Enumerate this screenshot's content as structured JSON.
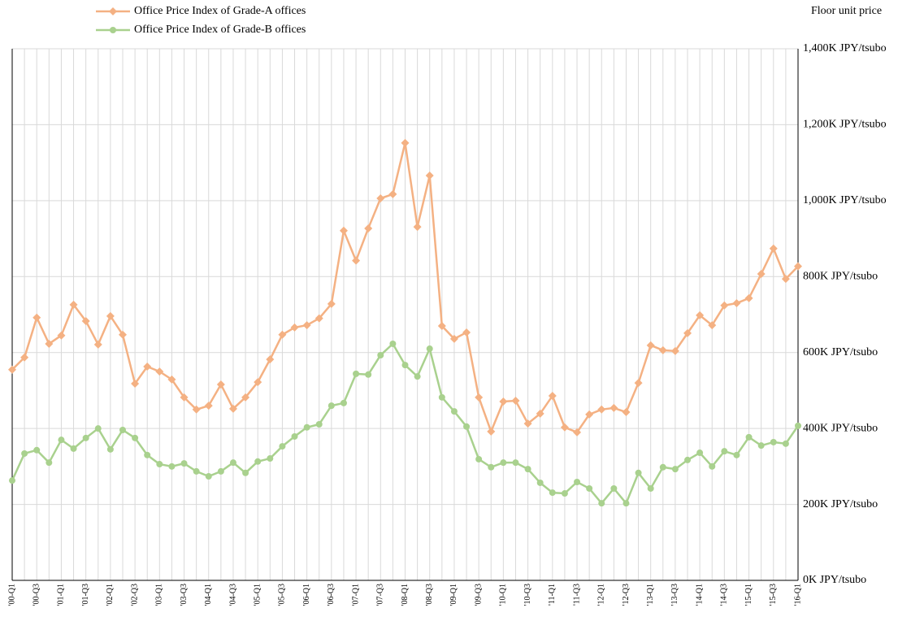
{
  "chart_data": {
    "type": "line",
    "y_label": "Floor unit price",
    "categories": [
      "'00-Q1",
      null,
      "'00-Q3",
      null,
      "'01-Q1",
      null,
      "'01-Q3",
      null,
      "'02-Q1",
      null,
      "'02-Q3",
      null,
      "'03-Q1",
      null,
      "'03-Q3",
      null,
      "'04-Q1",
      null,
      "'04-Q3",
      null,
      "'05-Q1",
      null,
      "'05-Q3",
      null,
      "'06-Q1",
      null,
      "'06-Q3",
      null,
      "'07-Q1",
      null,
      "'07-Q3",
      null,
      "'08-Q1",
      null,
      "'08-Q3",
      null,
      "'09-Q1",
      null,
      "'09-Q3",
      null,
      "'10-Q1",
      null,
      "'10-Q3",
      null,
      "'11-Q1",
      null,
      "'11-Q3",
      null,
      "'12-Q1",
      null,
      "'12-Q3",
      null,
      "'13-Q1",
      null,
      "'13-Q3",
      null,
      "'14-Q1",
      null,
      "'14-Q3",
      null,
      "'15-Q1",
      null,
      "'15-Q3",
      null,
      "'16-Q1"
    ],
    "series": [
      {
        "name": "Office Price Index of Grade-A offices",
        "color": "#f4b183",
        "marker": "diamond",
        "values": [
          555,
          587,
          692,
          623,
          645,
          726,
          683,
          621,
          696,
          647,
          518,
          563,
          550,
          529,
          482,
          450,
          460,
          516,
          452,
          482,
          522,
          582,
          647,
          666,
          672,
          690,
          728,
          921,
          842,
          927,
          1006,
          1017,
          1152,
          931,
          1066,
          670,
          636,
          653,
          482,
          392,
          471,
          473,
          413,
          439,
          486,
          403,
          390,
          437,
          450,
          454,
          443,
          520,
          619,
          606,
          604,
          651,
          698,
          672,
          724,
          730,
          743,
          807,
          874,
          794,
          827
        ]
      },
      {
        "name": "Office Price Index of Grade-B offices",
        "color": "#a9d18e",
        "marker": "circle",
        "values": [
          263,
          334,
          343,
          310,
          370,
          347,
          375,
          400,
          345,
          396,
          375,
          330,
          306,
          300,
          308,
          287,
          274,
          287,
          310,
          283,
          313,
          321,
          353,
          379,
          403,
          411,
          460,
          467,
          544,
          542,
          593,
          623,
          567,
          537,
          610,
          482,
          445,
          405,
          319,
          298,
          310,
          310,
          293,
          257,
          231,
          229,
          259,
          242,
          203,
          242,
          203,
          283,
          242,
          298,
          293,
          317,
          336,
          300,
          340,
          330,
          377,
          355,
          364,
          360,
          407
        ]
      }
    ],
    "ylim": [
      0,
      1400
    ],
    "yticks": [
      {
        "value": 0,
        "label": "0K JPY/tsubo"
      },
      {
        "value": 200,
        "label": "200K JPY/tsubo"
      },
      {
        "value": 400,
        "label": "400K JPY/tsubo"
      },
      {
        "value": 600,
        "label": "600K JPY/tsubo"
      },
      {
        "value": 800,
        "label": "800K JPY/tsubo"
      },
      {
        "value": 1000,
        "label": "1,000K JPY/tsubo"
      },
      {
        "value": 1200,
        "label": "1,200K JPY/tsubo"
      },
      {
        "value": 1400,
        "label": "1,400K JPY/tsubo"
      }
    ],
    "grid": true
  }
}
